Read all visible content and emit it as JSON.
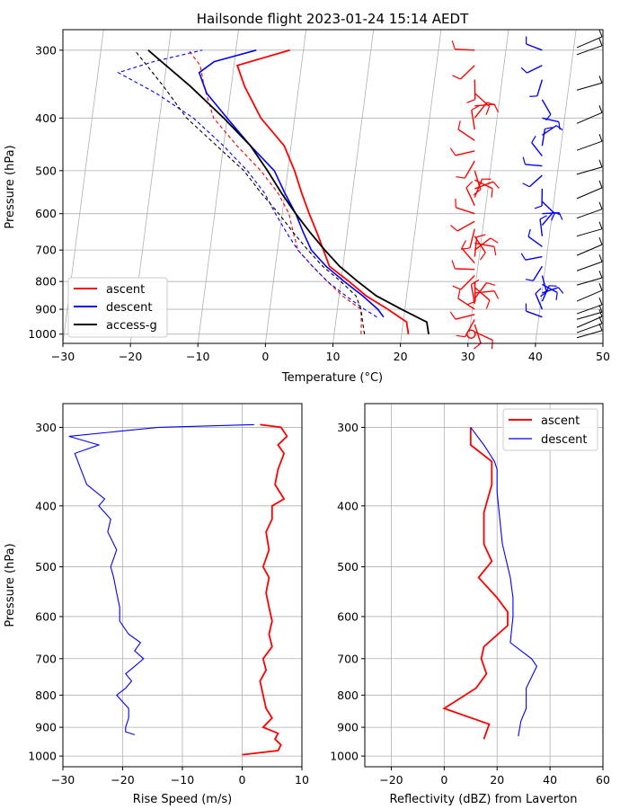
{
  "colors": {
    "ascent": "#ff0000",
    "descent": "#0000ff",
    "model": "#000000",
    "grid": "#b0b0b0"
  },
  "chart_data": [
    {
      "type": "line",
      "title": "Hailsonde flight 2023-01-24 15:14 AEDT",
      "xlabel": "Temperature (°C)",
      "ylabel": "Pressure (hPa)",
      "xlim": [
        -30,
        50
      ],
      "ylim": [
        1040,
        275
      ],
      "yscale": "log",
      "x_ticks": [
        "−30",
        "−20",
        "−10",
        "0",
        "10",
        "20",
        "30",
        "40",
        "50"
      ],
      "y_ticks": [
        "300",
        "400",
        "500",
        "600",
        "700",
        "800",
        "900",
        "1000"
      ],
      "grid": true,
      "skewed_isotherms": true,
      "legend_position": "lower-left",
      "legend": [
        "ascent",
        "descent",
        "access-g"
      ],
      "series": [
        {
          "name": "ascent",
          "kind": "temperature",
          "p": [
            1000,
            950,
            900,
            850,
            800,
            750,
            700,
            650,
            600,
            550,
            500,
            450,
            400,
            350,
            320,
            300
          ],
          "t": [
            21,
            20.5,
            17.5,
            14,
            11.2,
            8,
            6.8,
            5.5,
            4,
            2.5,
            1,
            -1,
            -5,
            -8,
            -9.5,
            -2
          ]
        },
        {
          "name": "ascent",
          "kind": "dewpoint",
          "p": [
            1000,
            950,
            900,
            850,
            800,
            750,
            700,
            650,
            600,
            550,
            500,
            450,
            400,
            350,
            320,
            300
          ],
          "t": [
            14,
            13.8,
            13.5,
            10.5,
            8,
            5.5,
            3,
            2,
            1,
            -1,
            -4,
            -8,
            -12,
            -14,
            -15,
            -17
          ]
        },
        {
          "name": "descent",
          "kind": "temperature",
          "p": [
            930,
            900,
            850,
            800,
            750,
            700,
            650,
            600,
            550,
            500,
            450,
            400,
            360,
            330,
            315,
            300
          ],
          "t": [
            17,
            16,
            13.5,
            10.5,
            7.5,
            5,
            3.5,
            2,
            0,
            -2,
            -6,
            -10,
            -13.5,
            -15,
            -13,
            -7
          ]
        },
        {
          "name": "descent",
          "kind": "dewpoint",
          "p": [
            930,
            900,
            850,
            800,
            750,
            700,
            650,
            600,
            550,
            500,
            450,
            400,
            360,
            330,
            315,
            300
          ],
          "t": [
            16,
            14,
            11,
            8,
            5.5,
            3,
            1,
            -1,
            -3,
            -6,
            -10,
            -15,
            -21,
            -27,
            -22,
            -15
          ]
        },
        {
          "name": "access-g",
          "kind": "temperature",
          "p": [
            1000,
            950,
            900,
            850,
            800,
            750,
            700,
            650,
            600,
            550,
            500,
            450,
            400,
            350,
            300
          ],
          "t": [
            24,
            23.5,
            19.5,
            15.5,
            12.5,
            9.5,
            7,
            4.5,
            2,
            -0.5,
            -3,
            -6,
            -10.5,
            -16,
            -23
          ]
        },
        {
          "name": "access-g",
          "kind": "dewpoint",
          "p": [
            1000,
            950,
            900,
            850,
            800,
            750,
            700,
            650,
            600,
            550,
            500,
            450,
            400,
            350,
            300
          ],
          "t": [
            14.5,
            14,
            13.5,
            12.5,
            10,
            7,
            4.5,
            2,
            -0.5,
            -3.5,
            -6.5,
            -11,
            -16,
            -20,
            -25
          ]
        }
      ],
      "wind_barbs": {
        "ascent_x": 31,
        "descent_x": 41,
        "model_x": 48,
        "ascent_levels": [
          990,
          960,
          940,
          920,
          900,
          880,
          860,
          840,
          820,
          800,
          780,
          760,
          740,
          720,
          700,
          680,
          660,
          640,
          620,
          600,
          580,
          560,
          540,
          520,
          500,
          480,
          460,
          440,
          420,
          400,
          380,
          360,
          340,
          320,
          300
        ],
        "descent_levels": [
          930,
          900,
          870,
          840,
          810,
          780,
          750,
          720,
          690,
          660,
          630,
          600,
          570,
          540,
          510,
          490,
          470,
          450,
          430,
          400,
          370,
          340,
          320,
          300
        ],
        "model_levels": [
          1000,
          975,
          950,
          925,
          900,
          850,
          800,
          750,
          700,
          650,
          600,
          550,
          500,
          450,
          400,
          350,
          300,
          290
        ],
        "calm_marker_p": 1000
      }
    },
    {
      "type": "line",
      "xlabel": "Rise Speed (m/s)",
      "ylabel": "Pressure (hPa)",
      "xlim": [
        -30,
        10
      ],
      "ylim": [
        1040,
        275
      ],
      "yscale": "log",
      "x_ticks": [
        "−30",
        "−20",
        "−10",
        "0",
        "10"
      ],
      "y_ticks": [
        "300",
        "400",
        "500",
        "600",
        "700",
        "800",
        "900",
        "1000"
      ],
      "grid": true,
      "series": [
        {
          "name": "ascent",
          "p": [
            995,
            980,
            960,
            940,
            920,
            900,
            870,
            840,
            800,
            760,
            730,
            700,
            670,
            640,
            610,
            580,
            550,
            520,
            500,
            470,
            440,
            420,
            400,
            390,
            370,
            350,
            330,
            320,
            310,
            300,
            297
          ],
          "v": [
            0,
            6,
            6.5,
            5.5,
            6,
            3.5,
            5,
            4,
            3.5,
            3,
            4,
            3.5,
            5,
            4.5,
            5,
            4.5,
            4,
            4.5,
            3.5,
            4.5,
            4,
            5,
            5,
            7,
            5.5,
            6,
            7,
            6,
            7.5,
            6.5,
            3
          ]
        },
        {
          "name": "descent",
          "p": [
            925,
            915,
            900,
            870,
            840,
            820,
            800,
            780,
            760,
            740,
            720,
            700,
            680,
            660,
            640,
            610,
            580,
            550,
            520,
            500,
            470,
            440,
            420,
            400,
            390,
            370,
            350,
            330,
            320,
            310,
            300,
            297
          ],
          "v": [
            -18,
            -19.5,
            -19.5,
            -19,
            -19,
            -20,
            -21,
            -19.5,
            -18.5,
            -19.5,
            -18,
            -16.5,
            -18,
            -17,
            -19,
            -20.5,
            -20.5,
            -21,
            -21.5,
            -22,
            -21,
            -22.5,
            -22,
            -24,
            -23,
            -26,
            -27,
            -28,
            -24,
            -29,
            -14,
            2
          ]
        }
      ]
    },
    {
      "type": "line",
      "xlabel": "Reflectivity (dBZ) from Laverton",
      "ylabel": "",
      "xlim": [
        -30,
        60
      ],
      "ylim": [
        1040,
        275
      ],
      "yscale": "log",
      "x_ticks": [
        "−20",
        "0",
        "20",
        "40",
        "60"
      ],
      "y_ticks": [
        "300",
        "400",
        "500",
        "600",
        "700",
        "800",
        "900",
        "1000"
      ],
      "grid": true,
      "legend_position": "top-right",
      "legend": [
        "ascent",
        "descent"
      ],
      "series": [
        {
          "name": "ascent",
          "p": [
            940,
            890,
            840,
            780,
            740,
            700,
            670,
            620,
            590,
            560,
            520,
            490,
            460,
            410,
            370,
            340,
            320,
            300
          ],
          "v": [
            15,
            17,
            0,
            12,
            16,
            14,
            15,
            24,
            24,
            20,
            13,
            18,
            15,
            15,
            18,
            18,
            10,
            10
          ]
        },
        {
          "name": "descent",
          "p": [
            930,
            880,
            840,
            780,
            720,
            700,
            660,
            600,
            560,
            520,
            460,
            420,
            380,
            350,
            340,
            320,
            300
          ],
          "v": [
            28,
            29,
            31,
            31,
            35,
            33,
            25,
            26,
            26,
            25,
            22,
            21,
            20,
            20,
            19,
            15,
            10
          ]
        }
      ]
    }
  ]
}
